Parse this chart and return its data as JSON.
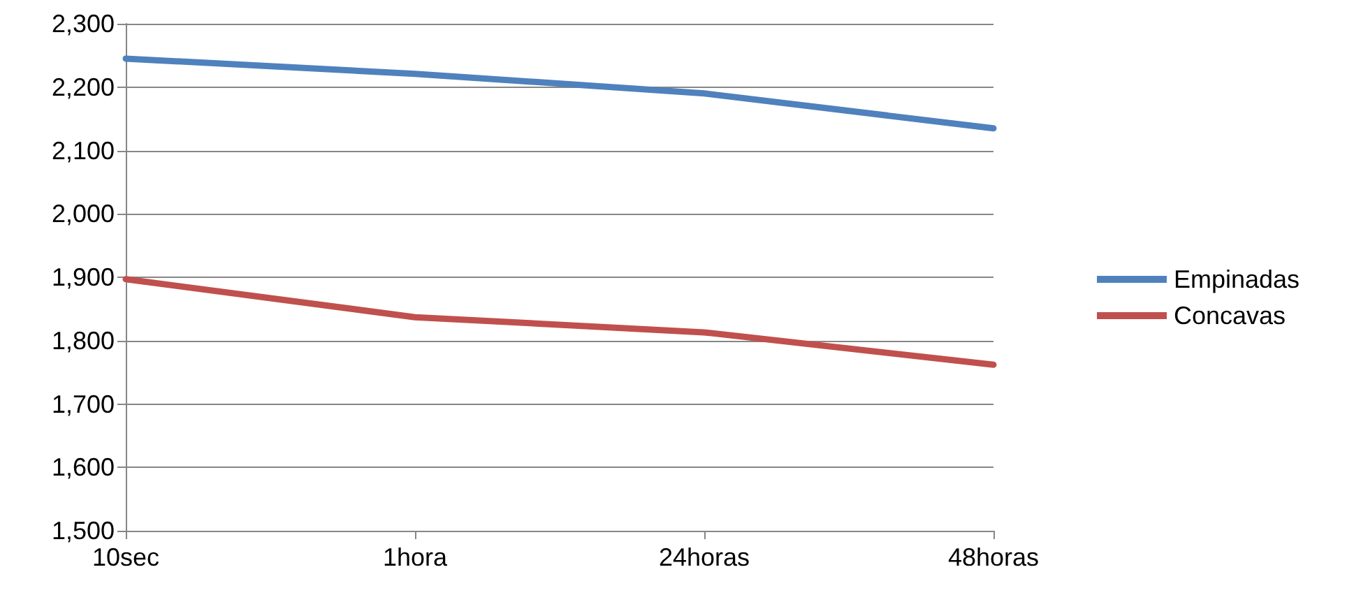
{
  "chart_data": {
    "type": "line",
    "categories": [
      "10sec",
      "1hora",
      "24horas",
      "48horas"
    ],
    "series": [
      {
        "name": "Empinadas",
        "color": "#4f81bd",
        "values": [
          2245,
          2221,
          2190,
          2135
        ]
      },
      {
        "name": "Concavas",
        "color": "#c0504d",
        "values": [
          1897,
          1837,
          1813,
          1762
        ]
      }
    ],
    "ylim": [
      1500,
      2300
    ],
    "yticks": [
      {
        "value": 1500,
        "label": "1,500"
      },
      {
        "value": 1600,
        "label": "1,600"
      },
      {
        "value": 1700,
        "label": "1,700"
      },
      {
        "value": 1800,
        "label": "1,800"
      },
      {
        "value": 1900,
        "label": "1,900"
      },
      {
        "value": 2000,
        "label": "2,000"
      },
      {
        "value": 2100,
        "label": "2,100"
      },
      {
        "value": 2200,
        "label": "2,200"
      },
      {
        "value": 2300,
        "label": "2,300"
      }
    ],
    "grid": "y",
    "legend": "right",
    "marker": "none",
    "line_style": "solid"
  }
}
